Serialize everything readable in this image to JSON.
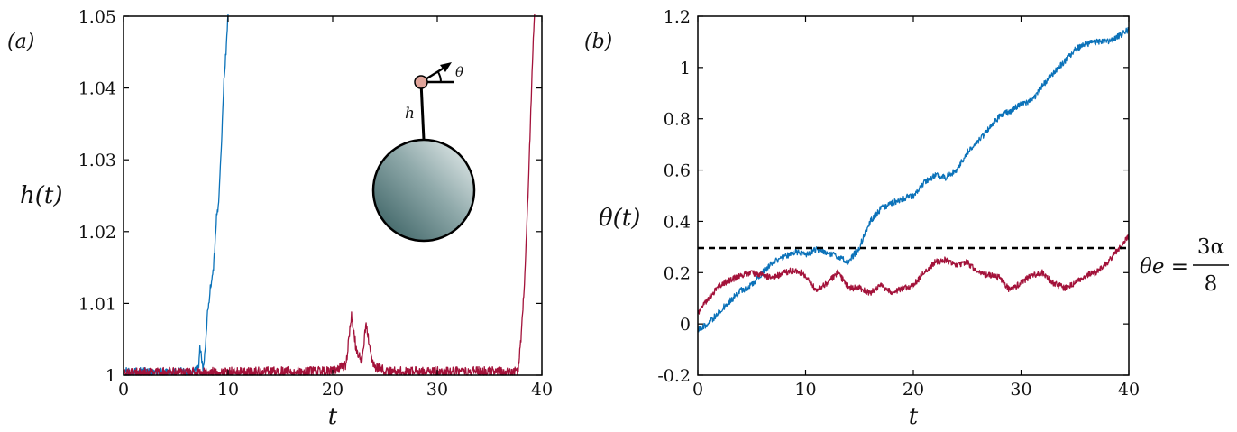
{
  "colors": {
    "blue": "#0b72b9",
    "red": "#a3123a",
    "axis": "#000000"
  },
  "chart_data": [
    {
      "type": "line",
      "panel_label": "(a)",
      "xlabel": "t",
      "ylabel": "h(t)",
      "xlim": [
        0,
        40
      ],
      "ylim": [
        1,
        1.05
      ],
      "xticks": [
        0,
        10,
        20,
        30,
        40
      ],
      "yticks": [
        1,
        1.01,
        1.02,
        1.03,
        1.04,
        1.05
      ],
      "xtick_labels": [
        "0",
        "10",
        "20",
        "30",
        "40"
      ],
      "ytick_labels": [
        "1",
        "1.01",
        "1.02",
        "1.03",
        "1.04",
        "1.05"
      ],
      "grid": false,
      "series": [
        {
          "color": "blue",
          "noise": 0.0006,
          "x": [
            0,
            2,
            4,
            6,
            7.2,
            7.3,
            7.6,
            7.8,
            8.0,
            8.3,
            8.6,
            8.9,
            9.1,
            9.3,
            9.6,
            9.8,
            10.0
          ],
          "y": [
            1.0005,
            1.0005,
            1.0004,
            1.0005,
            1.0008,
            1.004,
            1.001,
            1.003,
            1.008,
            1.012,
            1.015,
            1.022,
            1.024,
            1.03,
            1.041,
            1.045,
            1.051
          ]
        },
        {
          "color": "red",
          "noise": 0.0007,
          "x": [
            0,
            5,
            10,
            15,
            20,
            21.3,
            21.8,
            22.3,
            22.8,
            23.2,
            23.6,
            24.0,
            24.5,
            25,
            30,
            35,
            37.7,
            38.0,
            38.3,
            38.6,
            38.9,
            39.1,
            39.3
          ],
          "y": [
            1.0003,
            1.0004,
            1.0004,
            1.0005,
            1.0005,
            1.0015,
            1.0085,
            1.003,
            1.002,
            1.0075,
            1.003,
            1.001,
            1.0012,
            1.0005,
            1.0005,
            1.0005,
            1.0005,
            1.005,
            1.012,
            1.022,
            1.035,
            1.044,
            1.051
          ]
        }
      ],
      "inset": {
        "rod_label": "h",
        "angle_label": "θ"
      }
    },
    {
      "type": "line",
      "panel_label": "(b)",
      "xlabel": "t",
      "ylabel": "θ(t)",
      "xlim": [
        0,
        40
      ],
      "ylim": [
        -0.2,
        1.2
      ],
      "xticks": [
        0,
        10,
        20,
        30,
        40
      ],
      "yticks": [
        -0.2,
        0,
        0.2,
        0.4,
        0.6,
        0.8,
        1,
        1.2
      ],
      "xtick_labels": [
        "0",
        "10",
        "20",
        "30",
        "40"
      ],
      "ytick_labels": [
        "-0.2",
        "0",
        "0.2",
        "0.4",
        "0.6",
        "0.8",
        "1",
        "1.2"
      ],
      "grid": false,
      "series": [
        {
          "color": "blue",
          "noise": 0.012,
          "x": [
            0,
            1,
            2,
            3,
            4,
            5,
            6,
            7,
            8,
            9,
            10,
            11,
            12,
            13,
            14,
            15,
            16,
            17,
            18,
            19,
            20,
            21,
            22,
            23,
            24,
            25,
            26,
            27,
            28,
            29,
            30,
            31,
            32,
            33,
            34,
            35,
            36,
            37,
            38,
            39,
            40
          ],
          "y": [
            -0.02,
            0.0,
            0.05,
            0.09,
            0.13,
            0.15,
            0.2,
            0.24,
            0.26,
            0.28,
            0.27,
            0.29,
            0.28,
            0.26,
            0.24,
            0.3,
            0.4,
            0.45,
            0.47,
            0.49,
            0.5,
            0.55,
            0.58,
            0.57,
            0.6,
            0.67,
            0.71,
            0.76,
            0.81,
            0.83,
            0.86,
            0.87,
            0.93,
            0.98,
            1.02,
            1.07,
            1.09,
            1.1,
            1.1,
            1.12,
            1.15
          ]
        },
        {
          "color": "red",
          "noise": 0.012,
          "x": [
            0,
            1,
            2,
            3,
            4,
            5,
            6,
            7,
            8,
            9,
            10,
            11,
            12,
            13,
            14,
            15,
            16,
            17,
            18,
            19,
            20,
            21,
            22,
            23,
            24,
            25,
            26,
            27,
            28,
            29,
            30,
            31,
            32,
            33,
            34,
            35,
            36,
            37,
            38,
            39,
            40
          ],
          "y": [
            0.04,
            0.1,
            0.15,
            0.17,
            0.19,
            0.2,
            0.19,
            0.18,
            0.2,
            0.21,
            0.19,
            0.13,
            0.16,
            0.2,
            0.14,
            0.14,
            0.12,
            0.15,
            0.12,
            0.14,
            0.15,
            0.2,
            0.24,
            0.25,
            0.23,
            0.24,
            0.2,
            0.19,
            0.18,
            0.13,
            0.16,
            0.19,
            0.2,
            0.16,
            0.14,
            0.16,
            0.19,
            0.2,
            0.24,
            0.29,
            0.34
          ]
        }
      ],
      "reference_line": {
        "y": 0.296,
        "style": "dashed",
        "label_lhs": "θe =",
        "label_numerator": "3α",
        "label_denominator": "8"
      }
    }
  ]
}
